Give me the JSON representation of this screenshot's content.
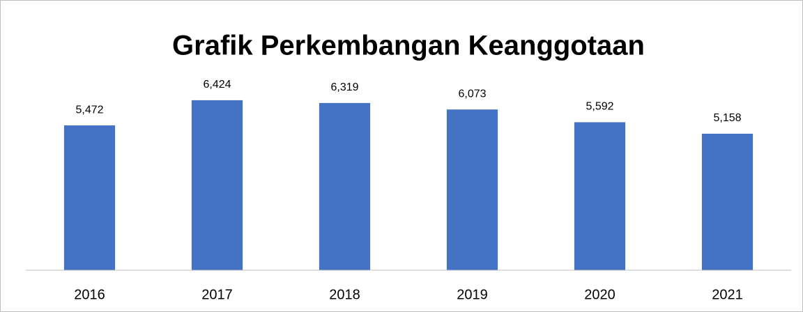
{
  "chart_data": {
    "type": "bar",
    "title": "Grafik Perkembangan Keanggotaan",
    "categories": [
      "2016",
      "2017",
      "2018",
      "2019",
      "2020",
      "2021"
    ],
    "values": [
      5472,
      6424,
      6319,
      6073,
      5592,
      5158
    ],
    "value_labels": [
      "5,472",
      "6,424",
      "6,319",
      "6,073",
      "5,592",
      "5,158"
    ],
    "color": "#4472c4",
    "ylim": [
      0,
      7000
    ]
  }
}
